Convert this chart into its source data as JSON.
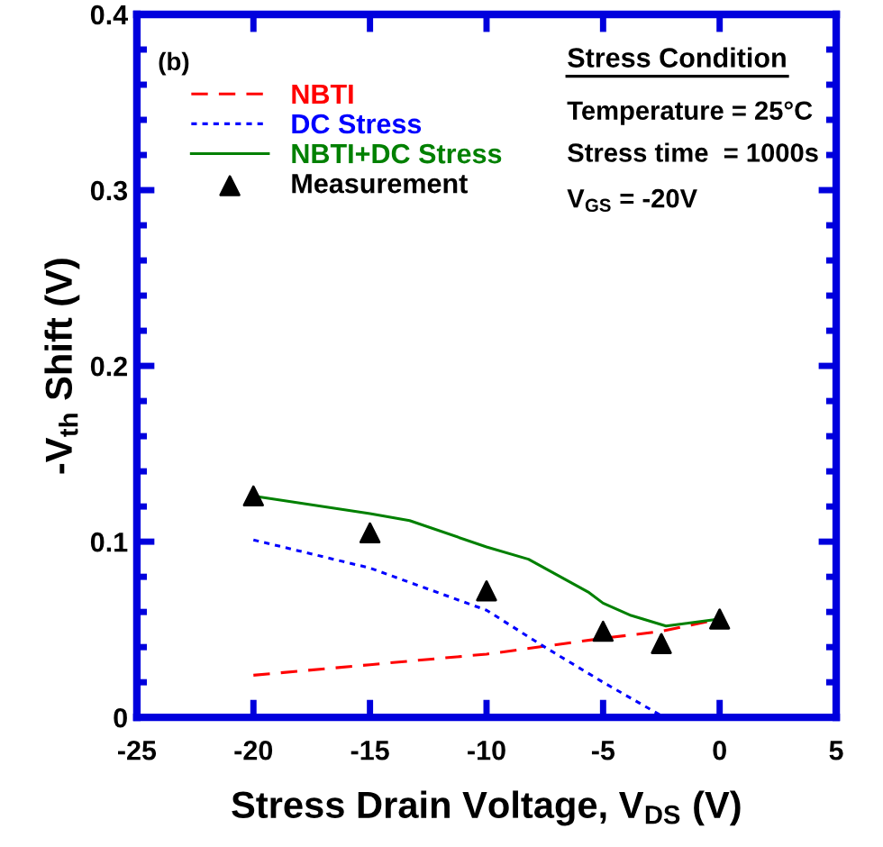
{
  "chart_data": {
    "type": "line",
    "xlabel": "Stress Drain Voltage, V$_{DS}$ (V)",
    "ylabel": "-V$_{th}$ Shift (V)",
    "xlim": [
      -25,
      5
    ],
    "xticks": [
      -25,
      -20,
      -15,
      -10,
      -5,
      0,
      5
    ],
    "ylim": [
      0,
      0.4
    ],
    "yticks": [
      0,
      0.1,
      0.2,
      0.3,
      0.4
    ],
    "grid": false,
    "legend": "top left",
    "annotations": [
      "(b)",
      "Stress Condition",
      "Temperature = 25°C",
      "Stress time  = 1000s",
      "V$_{GS}$ = -20V"
    ],
    "series": [
      {
        "name": "NBTI",
        "color": "#ff0000",
        "line_style": "dashed",
        "marker": "none",
        "x": [
          -20,
          -15,
          -10,
          -5,
          -2.5,
          0
        ],
        "values": [
          0.024,
          0.03,
          0.036,
          0.045,
          0.049,
          0.056
        ]
      },
      {
        "name": "DC Stress",
        "color": "#0000ff",
        "line_style": "dotted",
        "marker": "none",
        "x": [
          -20,
          -15,
          -10,
          -7.5,
          -5,
          -2.5
        ],
        "values": [
          0.101,
          0.085,
          0.061,
          0.04,
          0.02,
          0.001
        ]
      },
      {
        "name": "NBTI+DC Stress",
        "color": "#008000",
        "line_style": "solid",
        "marker": "none",
        "x": [
          -20,
          -15,
          -13.3,
          -10,
          -8.2,
          -5.6,
          -5,
          -3.8,
          -2.3,
          0
        ],
        "values": [
          0.126,
          0.116,
          0.112,
          0.097,
          0.09,
          0.071,
          0.065,
          0.058,
          0.052,
          0.056
        ]
      },
      {
        "name": "Measurement",
        "type": "scatter",
        "color": "#000000",
        "marker": "triangle",
        "x": [
          -20,
          -15,
          -10,
          -5,
          -2.5,
          0
        ],
        "values": [
          0.126,
          0.105,
          0.072,
          0.049,
          0.042,
          0.056
        ]
      }
    ]
  }
}
